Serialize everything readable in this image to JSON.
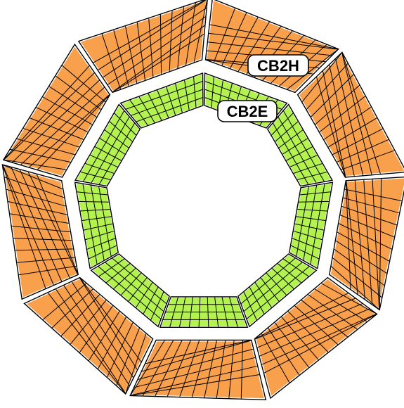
{
  "labels": {
    "outer_ring": "CB2H",
    "inner_ring": "CB2E"
  },
  "rings": {
    "outer": {
      "segments": 9,
      "fill": "#f9a04c",
      "stroke": "#000000",
      "separator": "#ffffff"
    },
    "inner": {
      "segments": 9,
      "fill": "#b3f24f",
      "stroke": "#000000",
      "separator": "#ffffff"
    }
  }
}
